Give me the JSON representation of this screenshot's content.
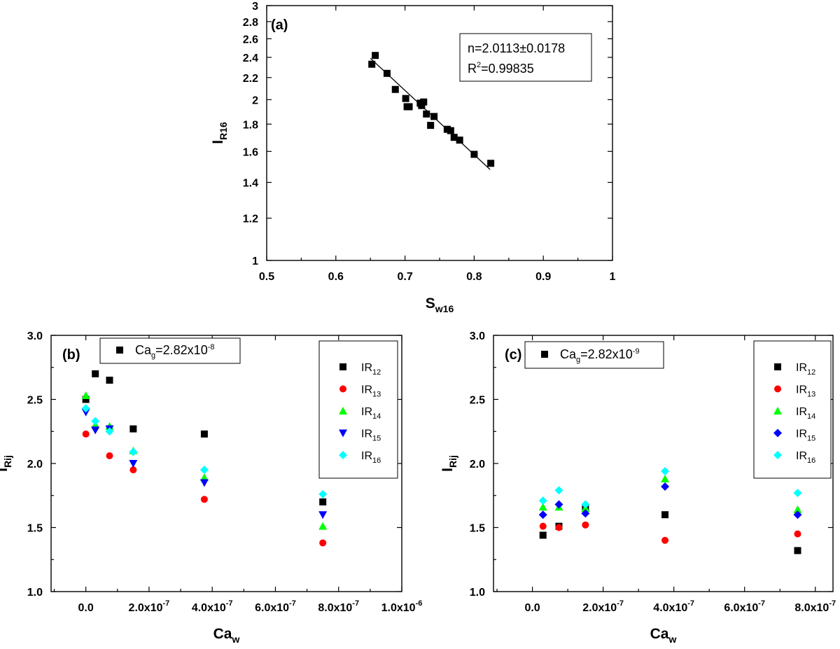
{
  "chart_data": [
    {
      "type": "scatter",
      "panel": "(a)",
      "xlabel": "S",
      "xlabel_sub": "w16",
      "ylabel": "I",
      "ylabel_sub": "R16",
      "xlim": [
        0.5,
        1.0
      ],
      "ylim": [
        1.0,
        3.0
      ],
      "yscale": "log",
      "xticks": [
        "0.5",
        "0.6",
        "0.7",
        "0.8",
        "0.9",
        "1"
      ],
      "yticks": [
        "1",
        "1.2",
        "1.4",
        "1.6",
        "1.8",
        "2",
        "2.2",
        "2.4",
        "2.6",
        "2.8",
        "3"
      ],
      "annotation": {
        "line1": "n=2.0113±0.0178",
        "line2_pre": "R",
        "line2_sup": "2",
        "line2_post": "=0.99835"
      },
      "fit_line": {
        "x": [
          0.65,
          0.823
        ],
        "y": [
          2.39,
          1.48
        ]
      },
      "series": [
        {
          "color": "#000000",
          "marker": "square",
          "x": [
            0.652,
            0.657,
            0.674,
            0.686,
            0.701,
            0.703,
            0.706,
            0.722,
            0.724,
            0.727,
            0.731,
            0.737,
            0.742,
            0.761,
            0.766,
            0.771,
            0.779,
            0.8,
            0.824
          ],
          "y": [
            2.33,
            2.42,
            2.24,
            2.09,
            2.01,
            1.94,
            1.94,
            1.97,
            1.95,
            1.98,
            1.88,
            1.79,
            1.86,
            1.76,
            1.75,
            1.7,
            1.68,
            1.58,
            1.52
          ]
        }
      ]
    },
    {
      "type": "scatter",
      "panel": "(b)",
      "xlabel": "Ca",
      "xlabel_sub": "w",
      "ylabel": "I",
      "ylabel_sub": "Rij",
      "xlim": [
        -1.1e-07,
        1e-06
      ],
      "ylim": [
        1.0,
        3.0
      ],
      "xticks": [
        {
          "v": 0,
          "label": "0.0"
        },
        {
          "v": 2e-07,
          "label": "2.0x10",
          "exp": "-7"
        },
        {
          "v": 4e-07,
          "label": "4.0x10",
          "exp": "-7"
        },
        {
          "v": 6e-07,
          "label": "6.0x10",
          "exp": "-7"
        },
        {
          "v": 8e-07,
          "label": "8.0x10",
          "exp": "-7"
        },
        {
          "v": 1e-06,
          "label": "1.0x10",
          "exp": "-6"
        }
      ],
      "yticks": [
        "1.0",
        "1.5",
        "2.0",
        "2.5",
        "3.0"
      ],
      "condition": {
        "pre": "Ca",
        "sub": "g",
        "post": "=2.82x10",
        "sup": "-8"
      },
      "series": [
        {
          "name": "IR",
          "sub": "12",
          "color": "#000000",
          "marker": "square",
          "x": [
            0,
            3e-08,
            7.5e-08,
            1.5e-07,
            3.75e-07,
            7.5e-07
          ],
          "y": [
            2.5,
            2.7,
            2.65,
            2.27,
            2.23,
            1.7
          ]
        },
        {
          "name": "IR",
          "sub": "13",
          "color": "#ff0000",
          "marker": "circle",
          "x": [
            0,
            3e-08,
            7.5e-08,
            1.5e-07,
            3.75e-07,
            7.5e-07
          ],
          "y": [
            2.23,
            2.28,
            2.06,
            1.95,
            1.72,
            1.38
          ]
        },
        {
          "name": "IR",
          "sub": "14",
          "color": "#00ff00",
          "marker": "triangle-up",
          "x": [
            0,
            3e-08,
            7.5e-08,
            1.5e-07,
            3.75e-07,
            7.5e-07
          ],
          "y": [
            2.53,
            2.3,
            2.29,
            2.1,
            1.89,
            1.51
          ]
        },
        {
          "name": "IR",
          "sub": "15",
          "color": "#0000ff",
          "marker": "triangle-down",
          "x": [
            0,
            3e-08,
            7.5e-08,
            1.5e-07,
            3.75e-07,
            7.5e-07
          ],
          "y": [
            2.4,
            2.26,
            2.27,
            2.0,
            1.85,
            1.6
          ]
        },
        {
          "name": "IR",
          "sub": "16",
          "color": "#00ffff",
          "marker": "diamond",
          "x": [
            0,
            3e-08,
            7.5e-08,
            1.5e-07,
            3.75e-07,
            7.5e-07
          ],
          "y": [
            2.43,
            2.33,
            2.25,
            2.09,
            1.95,
            1.76
          ]
        }
      ]
    },
    {
      "type": "scatter",
      "panel": "(c)",
      "xlabel": "Ca",
      "xlabel_sub": "w",
      "ylabel": "I",
      "ylabel_sub": "Rij",
      "xlim": [
        -1.1e-07,
        8.5e-07
      ],
      "ylim": [
        1.0,
        3.0
      ],
      "xticks": [
        {
          "v": 0,
          "label": "0.0"
        },
        {
          "v": 2e-07,
          "label": "2.0x10",
          "exp": "-7"
        },
        {
          "v": 4e-07,
          "label": "4.0x10",
          "exp": "-7"
        },
        {
          "v": 6e-07,
          "label": "6.0x10",
          "exp": "-7"
        },
        {
          "v": 8e-07,
          "label": "8.0x10",
          "exp": "-7"
        }
      ],
      "yticks": [
        "1.0",
        "1.5",
        "2.0",
        "2.5",
        "3.0"
      ],
      "condition": {
        "pre": "Ca",
        "sub": "g",
        "post": "=2.82x10",
        "sup": "-9"
      },
      "series": [
        {
          "name": "IR",
          "sub": "12",
          "color": "#000000",
          "marker": "square",
          "x": [
            3e-08,
            7.5e-08,
            1.5e-07,
            3.75e-07,
            7.5e-07
          ],
          "y": [
            1.44,
            1.51,
            1.65,
            1.6,
            1.32
          ]
        },
        {
          "name": "IR",
          "sub": "13",
          "color": "#ff0000",
          "marker": "circle",
          "x": [
            3e-08,
            7.5e-08,
            1.5e-07,
            3.75e-07,
            7.5e-07
          ],
          "y": [
            1.51,
            1.5,
            1.52,
            1.4,
            1.45
          ]
        },
        {
          "name": "IR",
          "sub": "14",
          "color": "#00ff00",
          "marker": "triangle-up",
          "x": [
            3e-08,
            7.5e-08,
            1.5e-07,
            3.75e-07,
            7.5e-07
          ],
          "y": [
            1.66,
            1.66,
            1.65,
            1.88,
            1.64
          ]
        },
        {
          "name": "IR",
          "sub": "15",
          "color": "#0000ff",
          "marker": "diamond",
          "x": [
            3e-08,
            7.5e-08,
            1.5e-07,
            3.75e-07,
            7.5e-07
          ],
          "y": [
            1.6,
            1.68,
            1.61,
            1.82,
            1.6
          ]
        },
        {
          "name": "IR",
          "sub": "16",
          "color": "#00ffff",
          "marker": "diamond",
          "x": [
            3e-08,
            7.5e-08,
            1.5e-07,
            3.75e-07,
            7.5e-07
          ],
          "y": [
            1.71,
            1.79,
            1.68,
            1.94,
            1.77
          ]
        }
      ]
    }
  ]
}
